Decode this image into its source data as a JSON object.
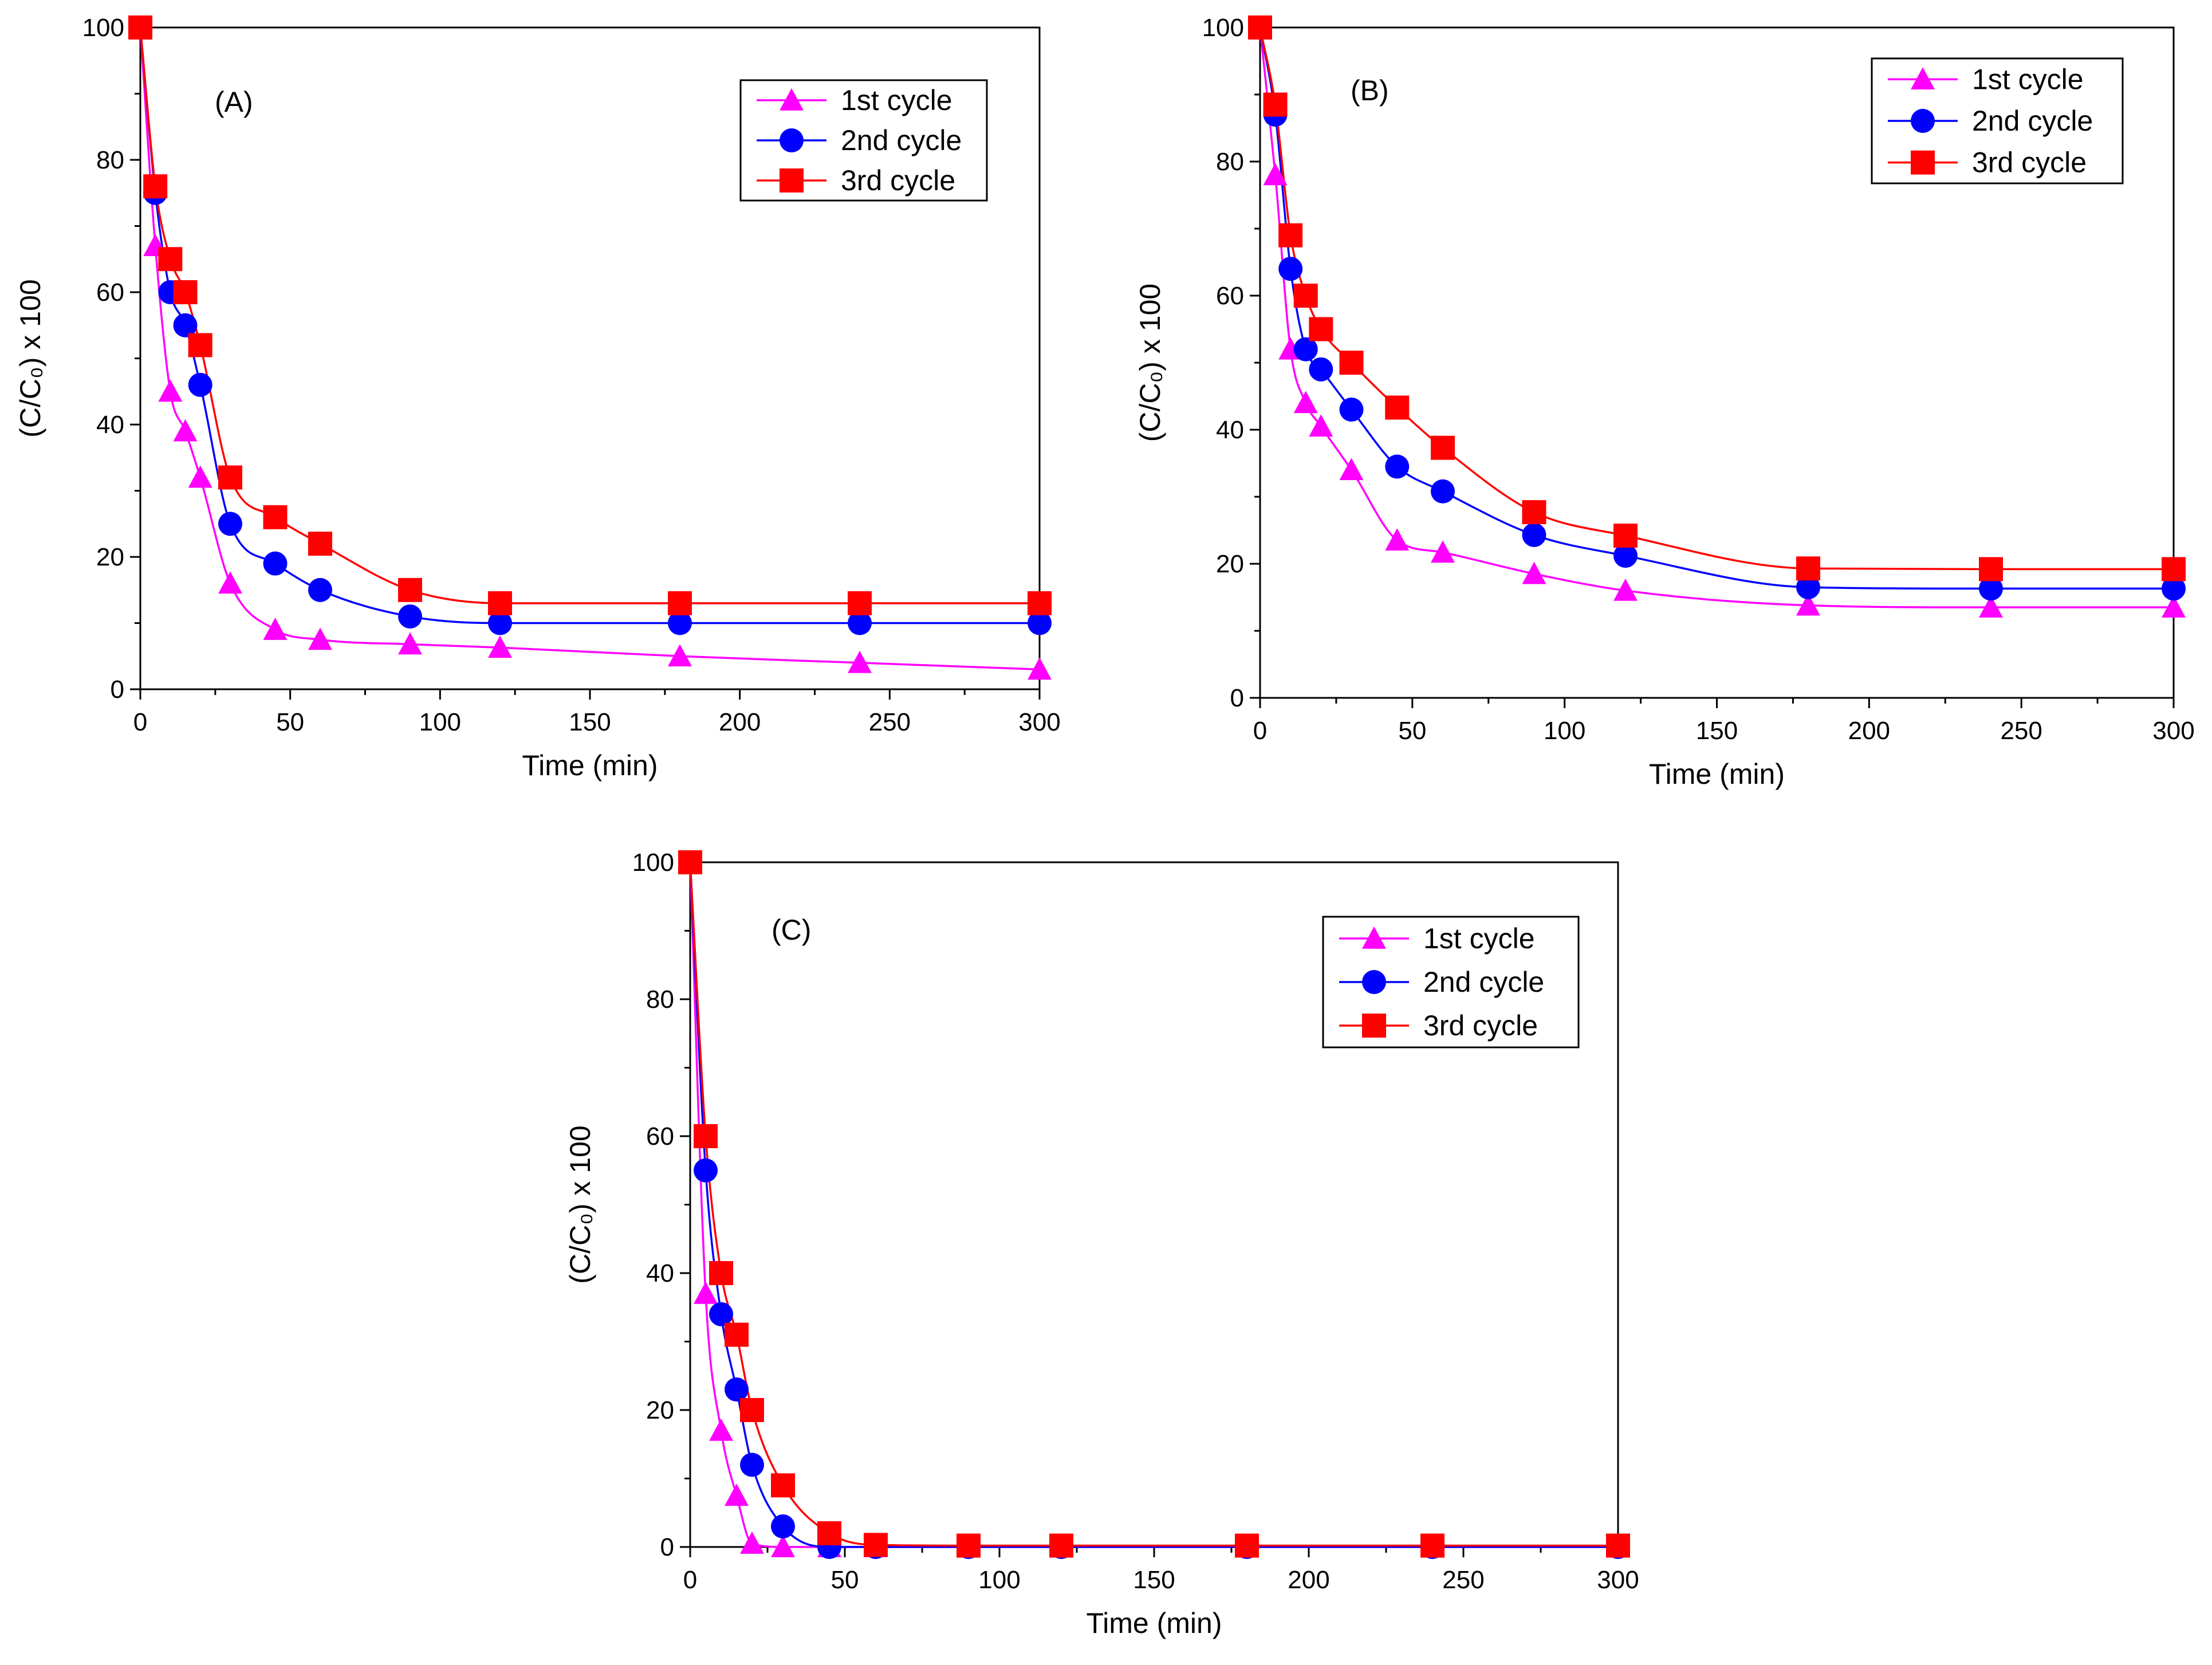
{
  "chart_data": [
    {
      "type": "line",
      "panel_label": "(A)",
      "xlabel": "Time (min)",
      "ylabel": "(C/C₀) x 100",
      "xlim": [
        0,
        300
      ],
      "ylim": [
        0,
        100
      ],
      "xticks": [
        0,
        50,
        100,
        150,
        200,
        250,
        300
      ],
      "yticks": [
        0,
        20,
        40,
        60,
        80,
        100
      ],
      "legend_position": "top-right",
      "x": [
        0,
        5,
        10,
        15,
        20,
        30,
        45,
        60,
        90,
        120,
        180,
        240,
        300
      ],
      "series": [
        {
          "name": "1st cycle",
          "marker": "triangle",
          "color": "#ff00ff",
          "values": [
            100,
            67,
            45,
            39,
            32,
            16,
            9,
            7.5,
            6.8,
            6.3,
            5,
            4,
            3
          ]
        },
        {
          "name": "2nd cycle",
          "marker": "circle",
          "color": "#0000ff",
          "values": [
            100,
            75,
            60,
            55,
            46,
            25,
            19,
            15,
            11,
            10,
            10,
            10,
            10
          ]
        },
        {
          "name": "3rd cycle",
          "marker": "square",
          "color": "#ff0000",
          "values": [
            100,
            76,
            65,
            60,
            52,
            32,
            26,
            22,
            15,
            13,
            13,
            13,
            13
          ]
        }
      ]
    },
    {
      "type": "line",
      "panel_label": "(B)",
      "xlabel": "Time (min)",
      "ylabel": "(C/C₀) x 100",
      "xlim": [
        0,
        300
      ],
      "ylim": [
        0,
        100
      ],
      "xticks": [
        0,
        50,
        100,
        150,
        200,
        250,
        300
      ],
      "yticks": [
        0,
        20,
        40,
        60,
        80,
        100
      ],
      "legend_position": "top-right",
      "x": [
        0,
        5,
        10,
        15,
        20,
        30,
        45,
        60,
        90,
        120,
        180,
        240,
        300
      ],
      "series": [
        {
          "name": "1st cycle",
          "marker": "triangle",
          "color": "#ff00ff",
          "values": [
            100,
            78,
            52,
            44,
            40.5,
            34,
            23.5,
            21.7,
            18.5,
            16,
            13.8,
            13.5,
            13.5
          ]
        },
        {
          "name": "2nd cycle",
          "marker": "circle",
          "color": "#0000ff",
          "values": [
            100,
            87,
            64,
            52,
            49,
            43,
            34.5,
            30.8,
            24.3,
            21.2,
            16.5,
            16.3,
            16.3
          ]
        },
        {
          "name": "3rd cycle",
          "marker": "square",
          "color": "#ff0000",
          "values": [
            100,
            88.5,
            69,
            60,
            55,
            50,
            43.3,
            37.3,
            27.7,
            24.2,
            19.3,
            19.2,
            19.2
          ]
        }
      ]
    },
    {
      "type": "line",
      "panel_label": "(C)",
      "xlabel": "Time (min)",
      "ylabel": "(C/C₀) x 100",
      "xlim": [
        0,
        300
      ],
      "ylim": [
        0,
        100
      ],
      "xticks": [
        0,
        50,
        100,
        150,
        200,
        250,
        300
      ],
      "yticks": [
        0,
        20,
        40,
        60,
        80,
        100
      ],
      "legend_position": "top-right",
      "x": [
        0,
        5,
        10,
        15,
        20,
        30,
        45,
        60,
        90,
        120,
        180,
        240,
        300
      ],
      "series": [
        {
          "name": "1st cycle",
          "marker": "triangle",
          "color": "#ff00ff",
          "values": [
            100,
            37,
            17,
            7.5,
            0.5,
            0,
            0,
            0,
            0,
            0,
            0,
            0,
            0
          ]
        },
        {
          "name": "2nd cycle",
          "marker": "circle",
          "color": "#0000ff",
          "values": [
            100,
            55,
            34,
            23,
            12,
            3,
            0,
            0,
            0,
            0,
            0,
            0,
            0
          ]
        },
        {
          "name": "3rd cycle",
          "marker": "square",
          "color": "#ff0000",
          "values": [
            100,
            60,
            40,
            31,
            20,
            9,
            2,
            0.3,
            0.2,
            0.2,
            0.2,
            0.2,
            0.2
          ]
        }
      ]
    }
  ]
}
